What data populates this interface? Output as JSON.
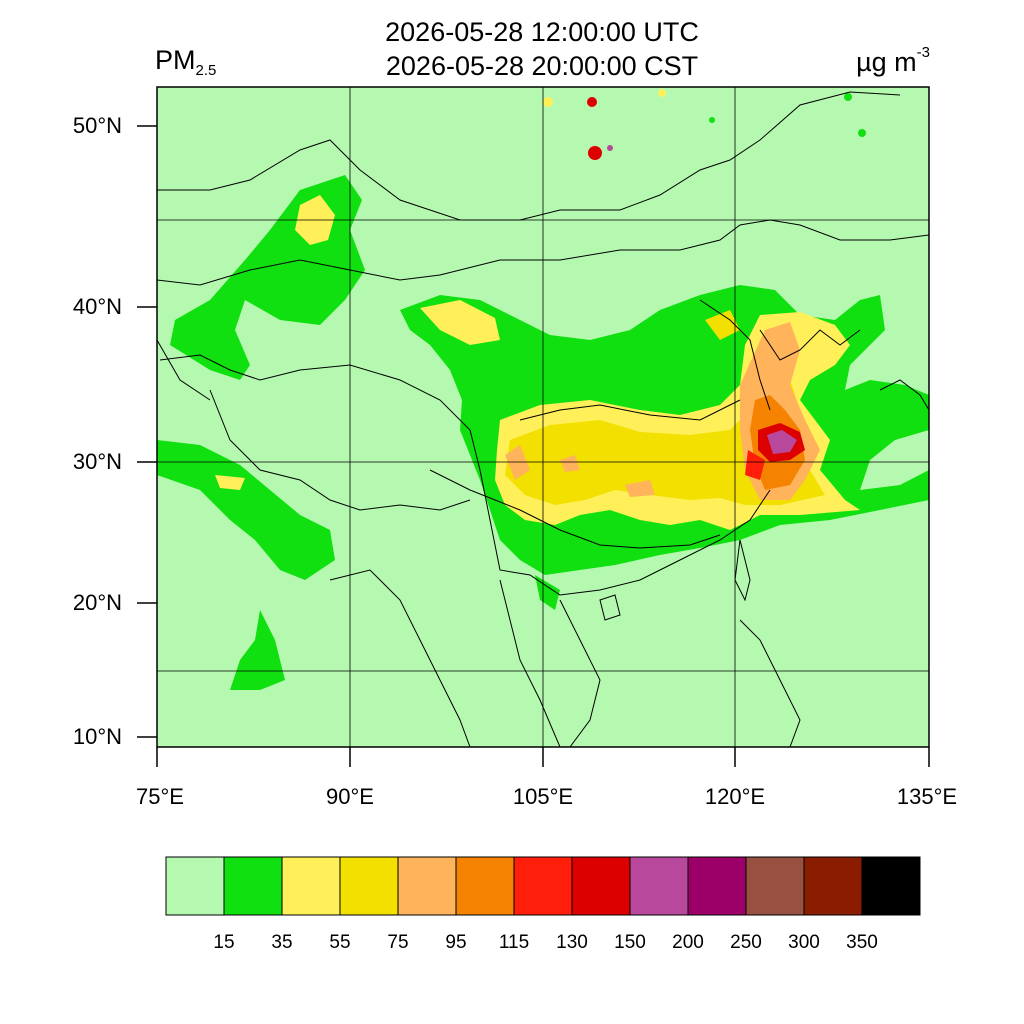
{
  "header": {
    "title_utc": "2026-05-28 12:00:00 UTC",
    "title_local": "2026-05-28 20:00:00 CST",
    "variable": "PM",
    "variable_sub": "2.5",
    "unit": "µg m",
    "unit_sup": "-3"
  },
  "axes": {
    "lat_labels": [
      "50°N",
      "40°N",
      "30°N",
      "20°N",
      "10°N"
    ],
    "lon_labels": [
      "75°E",
      "90°E",
      "105°E",
      "120°E",
      "135°E"
    ]
  },
  "colorbar": {
    "levels": [
      "15",
      "35",
      "55",
      "75",
      "95",
      "115",
      "130",
      "150",
      "200",
      "250",
      "300",
      "350"
    ],
    "colors": [
      "#b5f9b0",
      "#10e010",
      "#fff05a",
      "#f2e000",
      "#ffb35a",
      "#f58200",
      "#ff1e0a",
      "#dd0000",
      "#b8489c",
      "#9c0068",
      "#985040",
      "#8a1c00",
      "#000000"
    ]
  },
  "map": {
    "background": "#b5f9b0",
    "pollution_hotspot_value": "200"
  }
}
